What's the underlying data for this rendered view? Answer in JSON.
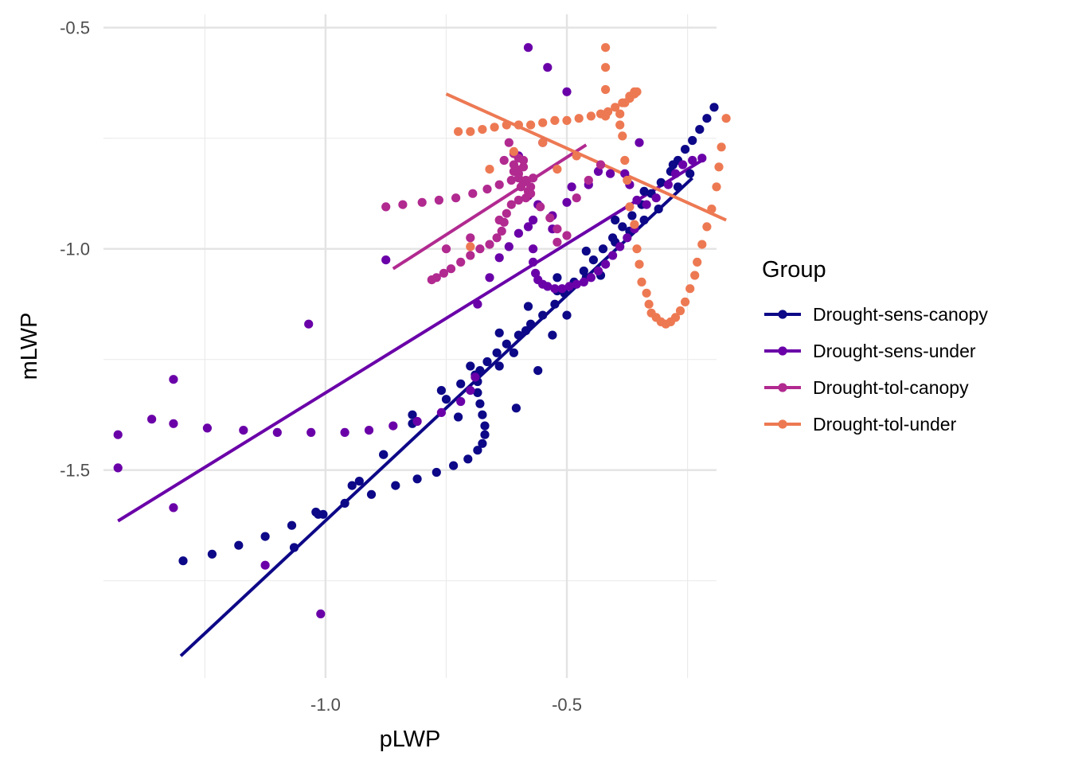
{
  "chart_data": {
    "type": "scatter",
    "title": "",
    "xlabel": "pLWP",
    "ylabel": "mLWP",
    "xlim": [
      -1.46,
      -0.19
    ],
    "ylim": [
      -1.97,
      -0.47
    ],
    "x_ticks": [
      -1.0,
      -0.5
    ],
    "x_tick_labels": [
      "-1.0",
      "-0.5"
    ],
    "x_minor_ticks": [
      -1.25,
      -0.75,
      -0.25
    ],
    "y_ticks": [
      -0.5,
      -1.0,
      -1.5
    ],
    "y_tick_labels": [
      "-0.5",
      "-1.0",
      "-1.5"
    ],
    "y_minor_ticks": [
      -0.75,
      -1.25,
      -1.75
    ],
    "grid": true,
    "legend": {
      "title": "Group",
      "position": "right"
    },
    "series": [
      {
        "name": "Drought-sens-canopy",
        "color": "#0d0887",
        "points": [
          [
            -1.295,
            -1.705
          ],
          [
            -1.235,
            -1.69
          ],
          [
            -1.18,
            -1.67
          ],
          [
            -1.125,
            -1.65
          ],
          [
            -1.07,
            -1.625
          ],
          [
            -1.015,
            -1.6
          ],
          [
            -0.96,
            -1.575
          ],
          [
            -0.905,
            -1.555
          ],
          [
            -0.855,
            -1.535
          ],
          [
            -0.81,
            -1.52
          ],
          [
            -0.77,
            -1.505
          ],
          [
            -0.735,
            -1.49
          ],
          [
            -0.705,
            -1.475
          ],
          [
            -0.685,
            -1.455
          ],
          [
            -0.675,
            -1.44
          ],
          [
            -0.67,
            -1.42
          ],
          [
            -0.67,
            -1.4
          ],
          [
            -0.675,
            -1.375
          ],
          [
            -0.68,
            -1.35
          ],
          [
            -0.685,
            -1.325
          ],
          [
            -0.685,
            -1.3
          ],
          [
            -0.68,
            -1.275
          ],
          [
            -0.665,
            -1.255
          ],
          [
            -0.645,
            -1.235
          ],
          [
            -0.625,
            -1.215
          ],
          [
            -0.6,
            -1.195
          ],
          [
            -0.575,
            -1.17
          ],
          [
            -0.55,
            -1.15
          ],
          [
            -0.525,
            -1.125
          ],
          [
            -0.505,
            -1.1
          ],
          [
            -0.485,
            -1.075
          ],
          [
            -0.465,
            -1.05
          ],
          [
            -0.445,
            -1.025
          ],
          [
            -0.425,
            -1.0
          ],
          [
            -0.405,
            -0.975
          ],
          [
            -0.385,
            -0.95
          ],
          [
            -0.365,
            -0.925
          ],
          [
            -0.345,
            -0.9
          ],
          [
            -0.325,
            -0.875
          ],
          [
            -0.305,
            -0.85
          ],
          [
            -0.285,
            -0.825
          ],
          [
            -0.27,
            -0.8
          ],
          [
            -0.255,
            -0.775
          ],
          [
            -0.24,
            -0.755
          ],
          [
            -0.225,
            -0.73
          ],
          [
            -0.21,
            -0.705
          ],
          [
            -0.195,
            -0.68
          ],
          [
            -1.065,
            -1.675
          ],
          [
            -1.005,
            -1.6
          ],
          [
            -0.945,
            -1.535
          ],
          [
            -0.88,
            -1.465
          ],
          [
            -0.82,
            -1.395
          ],
          [
            -0.76,
            -1.32
          ],
          [
            -0.7,
            -1.265
          ],
          [
            -0.64,
            -1.19
          ],
          [
            -0.58,
            -1.13
          ],
          [
            -0.52,
            -1.065
          ],
          [
            -0.46,
            -1.005
          ],
          [
            -0.4,
            -0.935
          ],
          [
            -0.34,
            -0.87
          ],
          [
            -0.28,
            -0.81
          ],
          [
            -1.02,
            -1.595
          ],
          [
            -0.93,
            -1.525
          ],
          [
            -0.88,
            -1.465
          ],
          [
            -0.82,
            -1.375
          ],
          [
            -0.75,
            -1.34
          ],
          [
            -0.72,
            -1.305
          ],
          [
            -0.69,
            -1.285
          ],
          [
            -0.64,
            -1.265
          ],
          [
            -0.61,
            -1.235
          ],
          [
            -0.585,
            -1.185
          ],
          [
            -0.52,
            -1.095
          ],
          [
            -0.49,
            -1.085
          ],
          [
            -0.46,
            -1.065
          ],
          [
            -0.4,
            -0.985
          ],
          [
            -0.37,
            -0.96
          ],
          [
            -0.34,
            -0.935
          ],
          [
            -0.31,
            -0.91
          ],
          [
            -0.27,
            -0.86
          ],
          [
            -0.245,
            -0.83
          ],
          [
            -0.725,
            -1.38
          ],
          [
            -0.605,
            -1.36
          ],
          [
            -0.56,
            -1.275
          ],
          [
            -0.53,
            -1.195
          ],
          [
            -0.5,
            -1.15
          ],
          [
            -0.43,
            -1.06
          ]
        ],
        "line": [
          [
            -1.3,
            -1.92
          ],
          [
            -0.24,
            -0.84
          ]
        ]
      },
      {
        "name": "Drought-sens-under",
        "color": "#6a00a8",
        "points": [
          [
            -1.43,
            -1.42
          ],
          [
            -1.36,
            -1.385
          ],
          [
            -1.315,
            -1.395
          ],
          [
            -1.245,
            -1.405
          ],
          [
            -1.17,
            -1.41
          ],
          [
            -1.1,
            -1.415
          ],
          [
            -1.03,
            -1.415
          ],
          [
            -0.96,
            -1.415
          ],
          [
            -0.91,
            -1.41
          ],
          [
            -0.86,
            -1.4
          ],
          [
            -0.81,
            -1.39
          ],
          [
            -0.76,
            -1.37
          ],
          [
            -0.72,
            -1.345
          ],
          [
            -0.7,
            -1.32
          ],
          [
            -0.69,
            -1.29
          ],
          [
            -1.43,
            -1.495
          ],
          [
            -1.315,
            -1.295
          ],
          [
            -1.315,
            -1.585
          ],
          [
            -1.125,
            -1.715
          ],
          [
            -1.035,
            -1.17
          ],
          [
            -1.01,
            -1.825
          ],
          [
            -0.875,
            -1.025
          ],
          [
            -0.685,
            -1.125
          ],
          [
            -0.66,
            -1.065
          ],
          [
            -0.64,
            -1.02
          ],
          [
            -0.62,
            -0.995
          ],
          [
            -0.6,
            -0.965
          ],
          [
            -0.57,
            -0.935
          ],
          [
            -0.53,
            -0.955
          ],
          [
            -0.53,
            -0.925
          ],
          [
            -0.5,
            -0.895
          ],
          [
            -0.49,
            -0.86
          ],
          [
            -0.455,
            -0.855
          ],
          [
            -0.435,
            -0.825
          ],
          [
            -0.41,
            -0.83
          ],
          [
            -0.37,
            -0.855
          ],
          [
            -0.355,
            -0.89
          ],
          [
            -0.335,
            -0.9
          ],
          [
            -0.315,
            -0.885
          ],
          [
            -0.29,
            -0.855
          ],
          [
            -0.275,
            -0.83
          ],
          [
            -0.26,
            -0.81
          ],
          [
            -0.24,
            -0.8
          ],
          [
            -0.22,
            -0.795
          ],
          [
            -0.58,
            -0.95
          ],
          [
            -0.57,
            -1.0
          ],
          [
            -0.57,
            -1.03
          ],
          [
            -0.565,
            -1.055
          ],
          [
            -0.56,
            -1.07
          ],
          [
            -0.55,
            -1.08
          ],
          [
            -0.54,
            -1.085
          ],
          [
            -0.525,
            -1.09
          ],
          [
            -0.51,
            -1.09
          ],
          [
            -0.495,
            -1.085
          ],
          [
            -0.48,
            -1.08
          ],
          [
            -0.465,
            -1.075
          ],
          [
            -0.45,
            -1.065
          ],
          [
            -0.435,
            -1.05
          ],
          [
            -0.42,
            -1.035
          ],
          [
            -0.405,
            -1.015
          ],
          [
            -0.39,
            -0.995
          ],
          [
            -0.375,
            -0.975
          ],
          [
            -0.36,
            -0.955
          ],
          [
            -0.58,
            -0.545
          ],
          [
            -0.54,
            -0.59
          ],
          [
            -0.5,
            -0.645
          ],
          [
            -0.55,
            -0.76
          ],
          [
            -0.6,
            -0.79
          ],
          [
            -0.38,
            -0.83
          ],
          [
            -0.35,
            -0.76
          ],
          [
            -0.58,
            -0.88
          ],
          [
            -0.56,
            -0.9
          ]
        ],
        "line": [
          [
            -1.43,
            -1.615
          ],
          [
            -0.22,
            -0.8
          ]
        ]
      },
      {
        "name": "Drought-tol-canopy",
        "color": "#b12a90",
        "points": [
          [
            -0.875,
            -0.905
          ],
          [
            -0.84,
            -0.9
          ],
          [
            -0.8,
            -0.895
          ],
          [
            -0.765,
            -0.89
          ],
          [
            -0.73,
            -0.885
          ],
          [
            -0.695,
            -0.875
          ],
          [
            -0.665,
            -0.865
          ],
          [
            -0.64,
            -0.855
          ],
          [
            -0.615,
            -0.845
          ],
          [
            -0.6,
            -0.83
          ],
          [
            -0.59,
            -0.815
          ],
          [
            -0.59,
            -0.8
          ],
          [
            -0.6,
            -0.795
          ],
          [
            -0.61,
            -0.81
          ],
          [
            -0.61,
            -0.825
          ],
          [
            -0.6,
            -0.84
          ],
          [
            -0.59,
            -0.85
          ],
          [
            -0.575,
            -0.86
          ],
          [
            -0.575,
            -0.875
          ],
          [
            -0.585,
            -0.885
          ],
          [
            -0.6,
            -0.89
          ],
          [
            -0.615,
            -0.9
          ],
          [
            -0.625,
            -0.92
          ],
          [
            -0.63,
            -0.94
          ],
          [
            -0.635,
            -0.96
          ],
          [
            -0.645,
            -0.975
          ],
          [
            -0.66,
            -0.99
          ],
          [
            -0.68,
            -1.0
          ],
          [
            -0.7,
            -1.015
          ],
          [
            -0.72,
            -1.03
          ],
          [
            -0.74,
            -1.045
          ],
          [
            -0.755,
            -1.055
          ],
          [
            -0.77,
            -1.065
          ],
          [
            -0.78,
            -1.07
          ],
          [
            -0.555,
            -0.905
          ],
          [
            -0.535,
            -0.93
          ],
          [
            -0.52,
            -0.955
          ],
          [
            -0.52,
            -0.985
          ],
          [
            -0.5,
            -0.97
          ],
          [
            -0.48,
            -0.885
          ],
          [
            -0.455,
            -0.845
          ],
          [
            -0.43,
            -0.81
          ],
          [
            -0.62,
            -0.76
          ],
          [
            -0.61,
            -0.785
          ],
          [
            -0.63,
            -0.8
          ],
          [
            -0.605,
            -0.82
          ],
          [
            -0.64,
            -0.935
          ],
          [
            -0.7,
            -0.975
          ],
          [
            -0.75,
            -1.0
          ],
          [
            -0.58,
            -0.87
          ],
          [
            -0.585,
            -0.845
          ],
          [
            -0.595,
            -0.86
          ],
          [
            -0.57,
            -0.84
          ]
        ],
        "line": [
          [
            -0.86,
            -1.045
          ],
          [
            -0.46,
            -0.765
          ]
        ]
      },
      {
        "name": "Drought-tol-under",
        "color": "#ed7953",
        "points": [
          [
            -0.725,
            -0.735
          ],
          [
            -0.7,
            -0.735
          ],
          [
            -0.675,
            -0.73
          ],
          [
            -0.65,
            -0.725
          ],
          [
            -0.625,
            -0.72
          ],
          [
            -0.6,
            -0.72
          ],
          [
            -0.575,
            -0.72
          ],
          [
            -0.55,
            -0.715
          ],
          [
            -0.525,
            -0.71
          ],
          [
            -0.5,
            -0.71
          ],
          [
            -0.475,
            -0.705
          ],
          [
            -0.45,
            -0.7
          ],
          [
            -0.43,
            -0.695
          ],
          [
            -0.415,
            -0.69
          ],
          [
            -0.4,
            -0.68
          ],
          [
            -0.385,
            -0.67
          ],
          [
            -0.37,
            -0.66
          ],
          [
            -0.36,
            -0.65
          ],
          [
            -0.355,
            -0.645
          ],
          [
            -0.36,
            -0.645
          ],
          [
            -0.37,
            -0.655
          ],
          [
            -0.38,
            -0.67
          ],
          [
            -0.39,
            -0.695
          ],
          [
            -0.39,
            -0.72
          ],
          [
            -0.385,
            -0.745
          ],
          [
            -0.38,
            -0.8
          ],
          [
            -0.375,
            -0.845
          ],
          [
            -0.37,
            -0.905
          ],
          [
            -0.36,
            -0.945
          ],
          [
            -0.355,
            -1.0
          ],
          [
            -0.35,
            -1.035
          ],
          [
            -0.345,
            -1.075
          ],
          [
            -0.335,
            -1.1
          ],
          [
            -0.33,
            -1.125
          ],
          [
            -0.325,
            -1.145
          ],
          [
            -0.315,
            -1.155
          ],
          [
            -0.305,
            -1.165
          ],
          [
            -0.295,
            -1.17
          ],
          [
            -0.285,
            -1.165
          ],
          [
            -0.275,
            -1.155
          ],
          [
            -0.265,
            -1.14
          ],
          [
            -0.255,
            -1.12
          ],
          [
            -0.245,
            -1.09
          ],
          [
            -0.235,
            -1.06
          ],
          [
            -0.23,
            -1.03
          ],
          [
            -0.22,
            -0.99
          ],
          [
            -0.21,
            -0.95
          ],
          [
            -0.2,
            -0.91
          ],
          [
            -0.19,
            -0.86
          ],
          [
            -0.185,
            -0.815
          ],
          [
            -0.18,
            -0.77
          ],
          [
            -0.17,
            -0.705
          ],
          [
            -0.42,
            -0.545
          ],
          [
            -0.42,
            -0.59
          ],
          [
            -0.42,
            -0.64
          ],
          [
            -0.42,
            -0.7
          ],
          [
            -0.48,
            -0.79
          ],
          [
            -0.52,
            -0.82
          ],
          [
            -0.55,
            -0.76
          ],
          [
            -0.61,
            -0.78
          ],
          [
            -0.66,
            -0.82
          ],
          [
            -0.7,
            -0.995
          ]
        ],
        "line": [
          [
            -0.75,
            -0.65
          ],
          [
            -0.17,
            -0.935
          ]
        ]
      }
    ]
  }
}
